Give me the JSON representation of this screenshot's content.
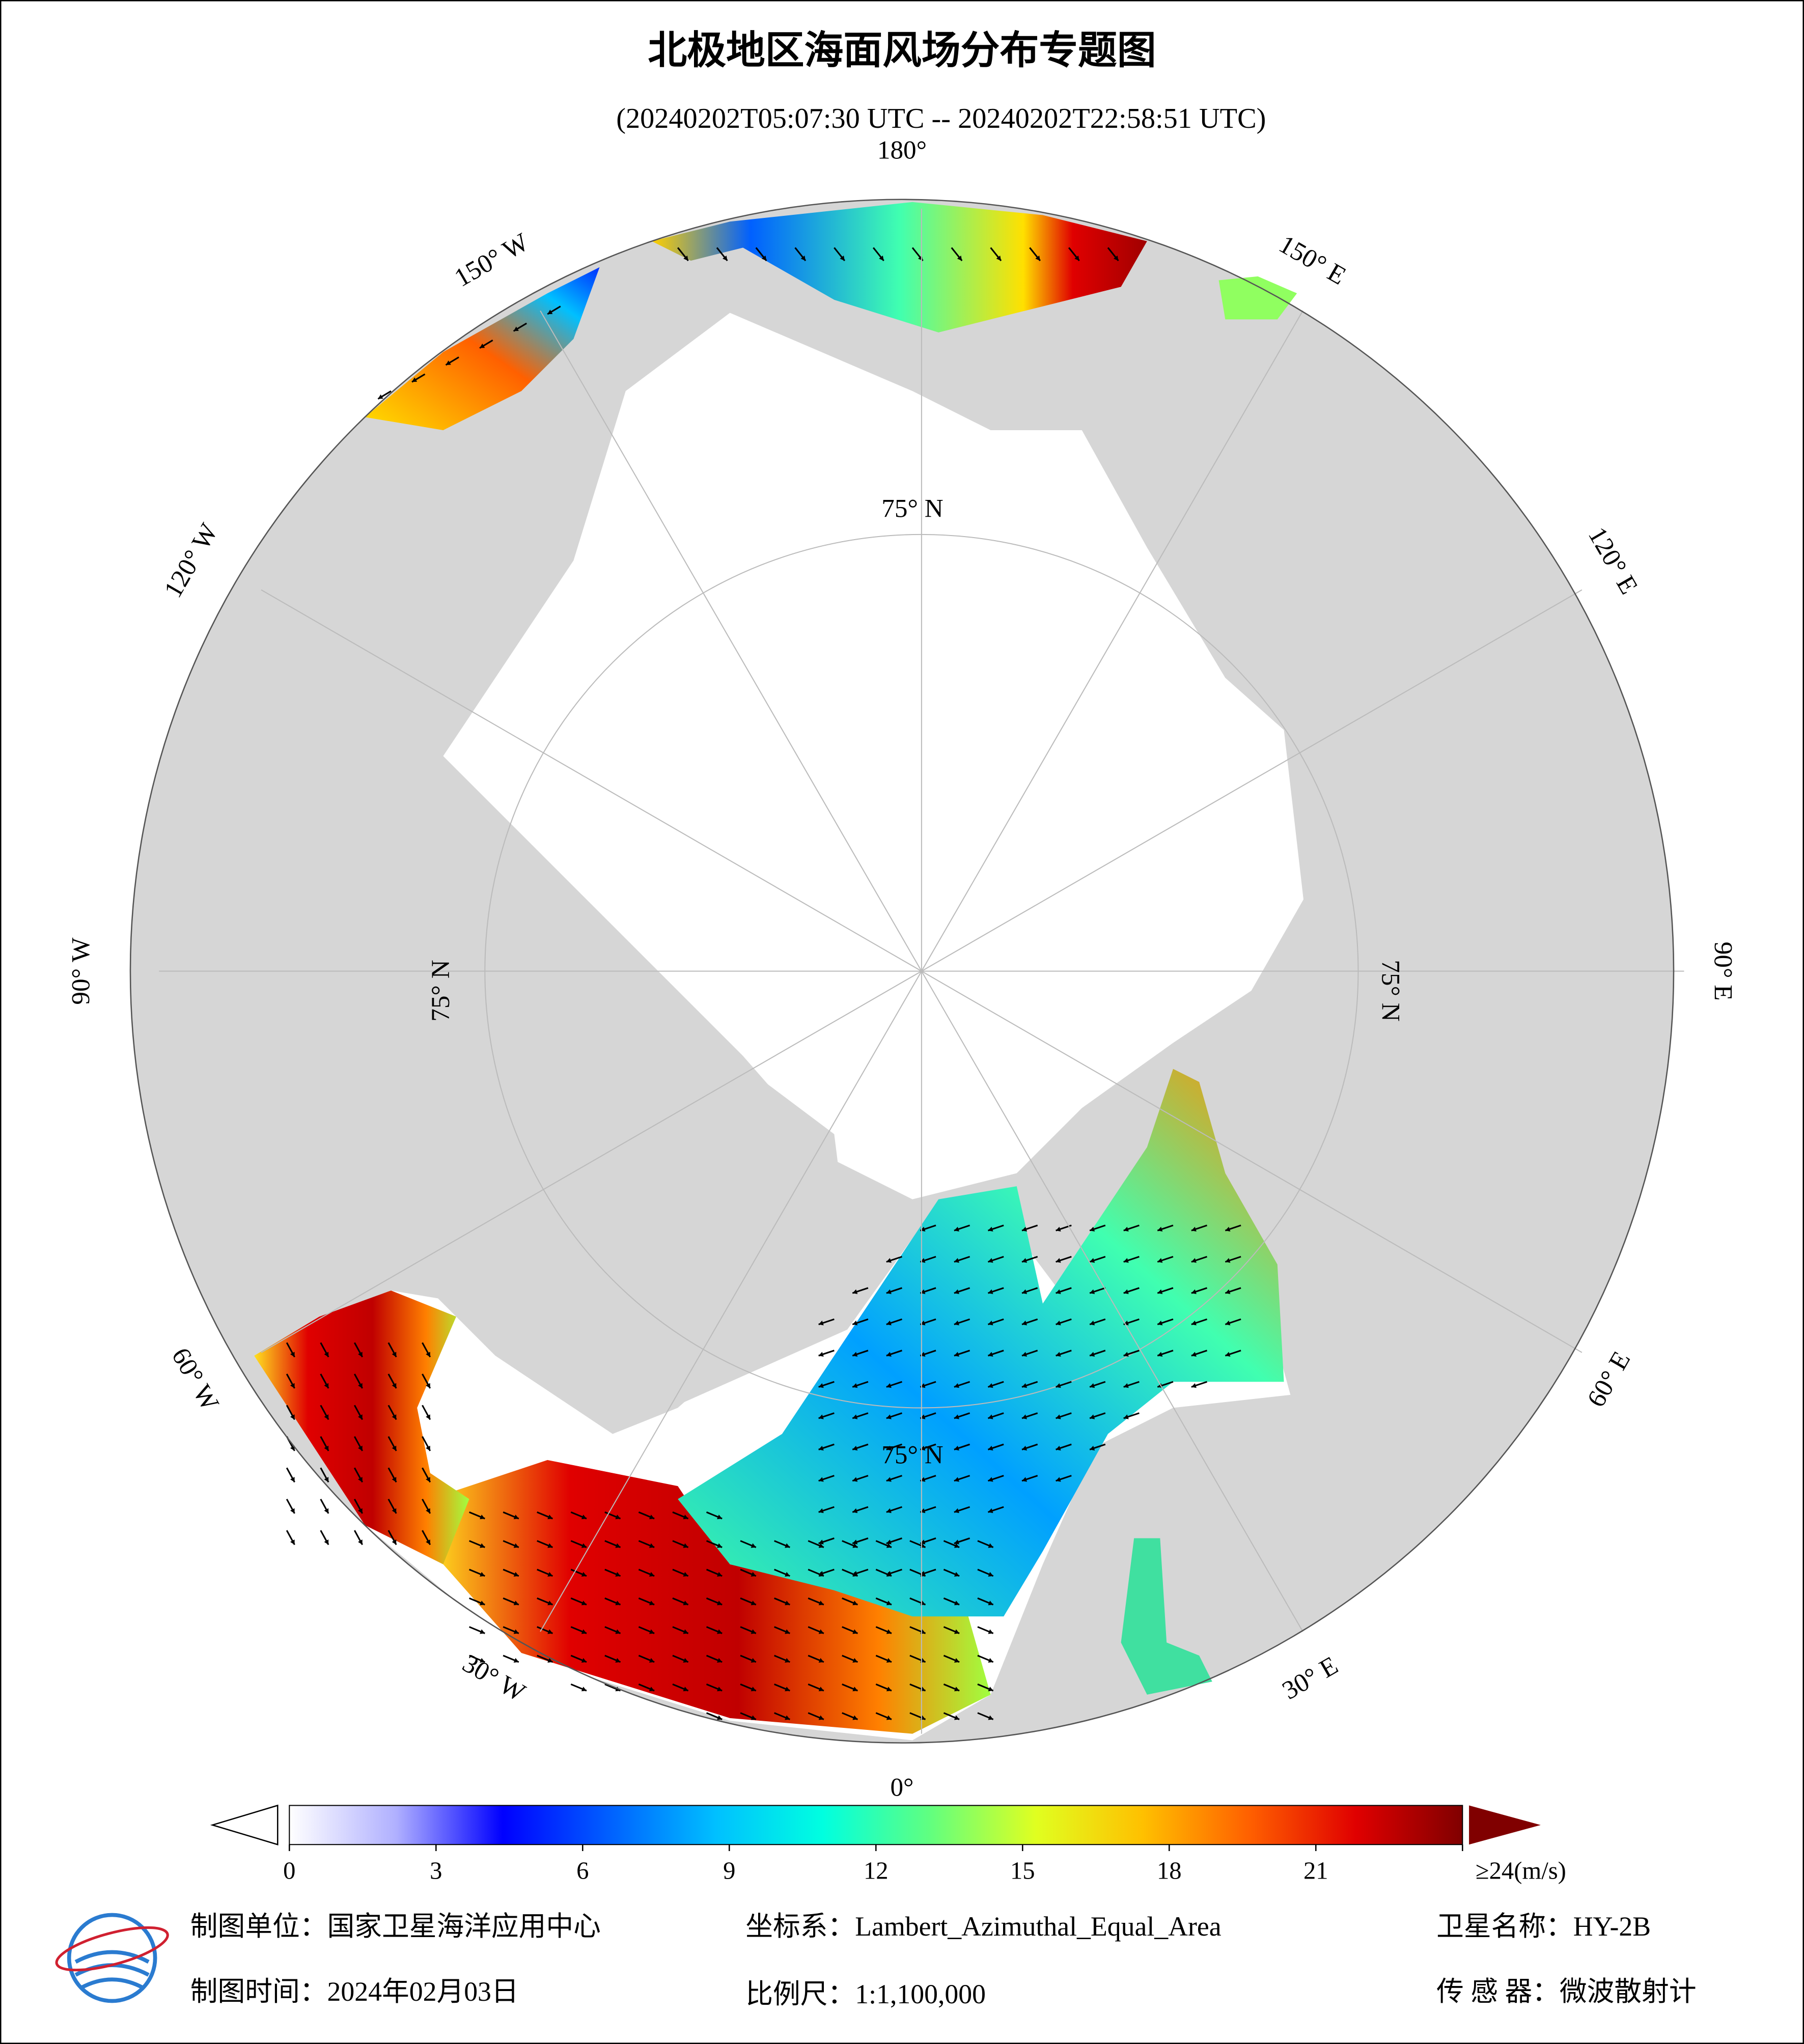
{
  "header": {
    "title": "北极地区海面风场分布专题图",
    "subtitle": "(20240202T05:07:30 UTC -- 20240202T22:58:51 UTC)"
  },
  "map": {
    "lon_labels": [
      "180°",
      "150° E",
      "120° E",
      "90° E",
      "60° E",
      "30° E",
      "0°",
      "30° W",
      "60° W",
      "90° W",
      "120° W",
      "150° W"
    ],
    "lat_labels": [
      "75° N",
      "75° N",
      "75° N",
      "75° N"
    ]
  },
  "colorbar": {
    "lim": [
      0,
      24
    ],
    "ticks": [
      0,
      3,
      6,
      9,
      12,
      15,
      18,
      21,
      {
        "value": 24,
        "label": "≥24(m/s)"
      }
    ],
    "colors": [
      "#ffffff",
      "#b0b0ff",
      "#0000ff",
      "#0060ff",
      "#00c0ff",
      "#00ffe0",
      "#60ff80",
      "#e0ff20",
      "#ffc000",
      "#ff6000",
      "#e00000",
      "#800000"
    ],
    "under_color": "#ffffff",
    "over_color": "#800000"
  },
  "footer": {
    "unit": "制图单位：国家卫星海洋应用中心",
    "crs": "坐标系：Lambert_Azimuthal_Equal_Area",
    "satellite": "卫星名称：HY-2B",
    "date": "制图时间：2024年02月03日",
    "scale": "比例尺：1:1,100,000",
    "sensor": "传 感 器：微波散射计"
  }
}
